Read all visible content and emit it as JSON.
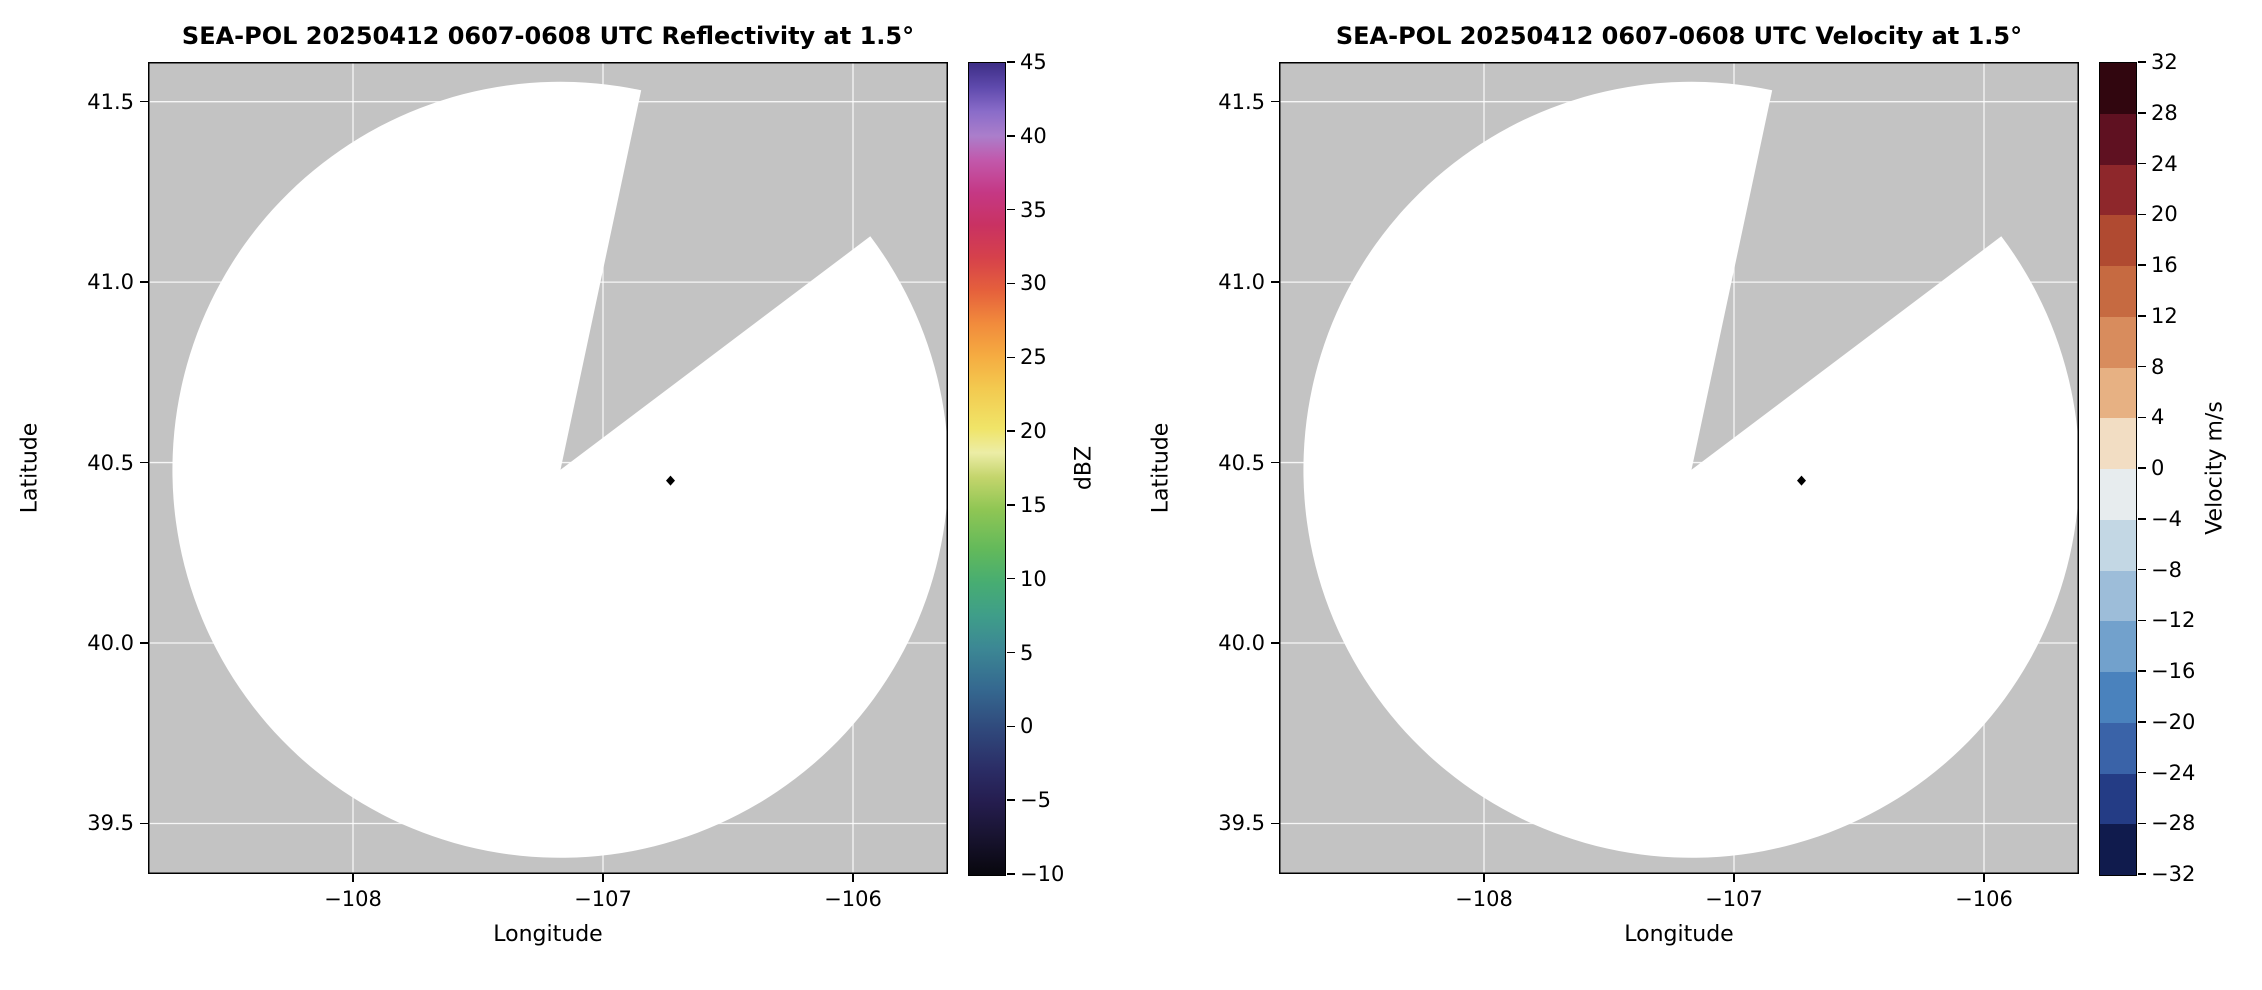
{
  "figure": {
    "background_color": "#ffffff"
  },
  "chart_data": [
    {
      "type": "heatmap",
      "title": "SEA-POL 20250412 0607-0608 UTC Reflectivity at 1.5°",
      "xlabel": "Longitude",
      "ylabel": "Latitude",
      "xlim": [
        -108.82,
        -105.62
      ],
      "ylim": [
        39.36,
        41.61
      ],
      "grid": true,
      "xticks": [
        {
          "v": -108,
          "label": "−108"
        },
        {
          "v": -107,
          "label": "−107"
        },
        {
          "v": -106,
          "label": "−106"
        }
      ],
      "yticks": [
        {
          "v": 39.5,
          "label": "39.5"
        },
        {
          "v": 40.0,
          "label": "40.0"
        },
        {
          "v": 40.5,
          "label": "40.5"
        },
        {
          "v": 41.0,
          "label": "41.0"
        },
        {
          "v": 41.5,
          "label": "41.5"
        }
      ],
      "radar": {
        "center_lon": -107.17,
        "center_lat": 40.48,
        "radius_deg_lat": 1.075,
        "blocked_sector_azimuth_deg": [
          12,
          53
        ],
        "scan_area_color": "#ffffff",
        "no_data_color": "#c3c3c3",
        "echoes": "none visible"
      },
      "marker": {
        "lon": -106.73,
        "lat": 40.45,
        "shape": "diamond",
        "color": "#000000"
      },
      "colorbar": {
        "label": "dBZ",
        "type": "continuous",
        "min": -10,
        "max": 45,
        "ticks": [
          {
            "v": -10,
            "label": "−10"
          },
          {
            "v": -5,
            "label": "−5"
          },
          {
            "v": 0,
            "label": "0"
          },
          {
            "v": 5,
            "label": "5"
          },
          {
            "v": 10,
            "label": "10"
          },
          {
            "v": 15,
            "label": "15"
          },
          {
            "v": 20,
            "label": "20"
          },
          {
            "v": 25,
            "label": "25"
          },
          {
            "v": 30,
            "label": "30"
          },
          {
            "v": 35,
            "label": "35"
          },
          {
            "v": 40,
            "label": "40"
          },
          {
            "v": 45,
            "label": "45"
          }
        ],
        "gradient_stops": [
          [
            "0%",
            "#08070d"
          ],
          [
            "5%",
            "#191432"
          ],
          [
            "9%",
            "#251d4f"
          ],
          [
            "13%",
            "#2b2d66"
          ],
          [
            "18%",
            "#30497c"
          ],
          [
            "23%",
            "#356990"
          ],
          [
            "28%",
            "#3c8894"
          ],
          [
            "32%",
            "#3f9e89"
          ],
          [
            "36%",
            "#47ad72"
          ],
          [
            "40%",
            "#62b95b"
          ],
          [
            "45%",
            "#8fc654"
          ],
          [
            "49%",
            "#c4d56c"
          ],
          [
            "52%",
            "#eceda6"
          ],
          [
            "55%",
            "#f0e468"
          ],
          [
            "60%",
            "#f3c94f"
          ],
          [
            "64%",
            "#f5ab41"
          ],
          [
            "68%",
            "#f18a3c"
          ],
          [
            "72%",
            "#e5603c"
          ],
          [
            "76%",
            "#d6414b"
          ],
          [
            "80%",
            "#c93262"
          ],
          [
            "84%",
            "#c53884"
          ],
          [
            "88%",
            "#c258ab"
          ],
          [
            "91%",
            "#ab7ecb"
          ],
          [
            "94%",
            "#8a6cc9"
          ],
          [
            "97%",
            "#5f4aad"
          ],
          [
            "100%",
            "#3d2e86"
          ]
        ]
      }
    },
    {
      "type": "heatmap",
      "title": "SEA-POL 20250412 0607-0608 UTC Velocity at 1.5°",
      "xlabel": "Longitude",
      "ylabel": "Latitude",
      "xlim": [
        -108.82,
        -105.62
      ],
      "ylim": [
        39.36,
        41.61
      ],
      "grid": true,
      "xticks": [
        {
          "v": -108,
          "label": "−108"
        },
        {
          "v": -107,
          "label": "−107"
        },
        {
          "v": -106,
          "label": "−106"
        }
      ],
      "yticks": [
        {
          "v": 39.5,
          "label": "39.5"
        },
        {
          "v": 40.0,
          "label": "40.0"
        },
        {
          "v": 40.5,
          "label": "40.5"
        },
        {
          "v": 41.0,
          "label": "41.0"
        },
        {
          "v": 41.5,
          "label": "41.5"
        }
      ],
      "radar": {
        "center_lon": -107.17,
        "center_lat": 40.48,
        "radius_deg_lat": 1.075,
        "blocked_sector_azimuth_deg": [
          12,
          53
        ],
        "scan_area_color": "#ffffff",
        "no_data_color": "#c3c3c3",
        "echoes": "none visible"
      },
      "marker": {
        "lon": -106.73,
        "lat": 40.45,
        "shape": "diamond",
        "color": "#000000"
      },
      "colorbar": {
        "label": "Velocity m/s",
        "type": "discrete",
        "min": -32,
        "max": 32,
        "ticks": [
          {
            "v": 32,
            "label": "32"
          },
          {
            "v": 28,
            "label": "28"
          },
          {
            "v": 24,
            "label": "24"
          },
          {
            "v": 20,
            "label": "20"
          },
          {
            "v": 16,
            "label": "16"
          },
          {
            "v": 12,
            "label": "12"
          },
          {
            "v": 8,
            "label": "8"
          },
          {
            "v": 4,
            "label": "4"
          },
          {
            "v": 0,
            "label": "0"
          },
          {
            "v": -4,
            "label": "−4"
          },
          {
            "v": -8,
            "label": "−8"
          },
          {
            "v": -12,
            "label": "−12"
          },
          {
            "v": -16,
            "label": "−16"
          },
          {
            "v": -20,
            "label": "−20"
          },
          {
            "v": -24,
            "label": "−24"
          },
          {
            "v": -28,
            "label": "−28"
          },
          {
            "v": -32,
            "label": "−32"
          }
        ],
        "segment_colors_top_to_bottom": [
          "#31060f",
          "#5f1121",
          "#8e272b",
          "#b04a31",
          "#c66a41",
          "#d88c5d",
          "#e7b183",
          "#f2ddc3",
          "#e7ecee",
          "#c3d7e4",
          "#9dbdd9",
          "#72a1cc",
          "#4a82bd",
          "#3a63a8",
          "#243c85",
          "#101b4d"
        ]
      }
    }
  ]
}
